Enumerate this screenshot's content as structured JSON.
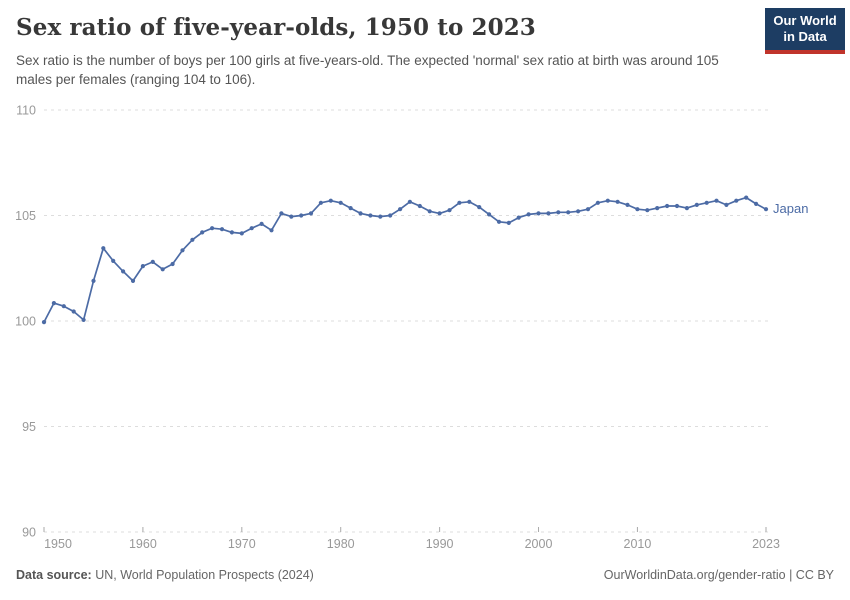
{
  "header": {
    "title": "Sex ratio of five-year-olds, 1950 to 2023",
    "subtitle": "Sex ratio is the number of boys per 100 girls at five-years-old. The expected 'normal' sex ratio at birth was around 105 males per females (ranging 104 to 106).",
    "logo": {
      "line1": "Our World",
      "line2": "in Data"
    }
  },
  "chart_data": {
    "type": "line",
    "title": "Sex ratio of five-year-olds, 1950 to 2023",
    "xlabel": "",
    "ylabel": "",
    "ylim": [
      90,
      110
    ],
    "yticks": [
      90,
      95,
      100,
      105,
      110
    ],
    "xticks": [
      1950,
      1960,
      1970,
      1980,
      1990,
      2000,
      2010,
      2023
    ],
    "grid": "horizontal-dashed",
    "legend_position": "end-of-line-label",
    "x_start": 1950,
    "x_end": 2023,
    "series": [
      {
        "name": "Japan",
        "color": "#4c6ba5",
        "x": [
          1950,
          1951,
          1952,
          1953,
          1954,
          1955,
          1956,
          1957,
          1958,
          1959,
          1960,
          1961,
          1962,
          1963,
          1964,
          1965,
          1966,
          1967,
          1968,
          1969,
          1970,
          1971,
          1972,
          1973,
          1974,
          1975,
          1976,
          1977,
          1978,
          1979,
          1980,
          1981,
          1982,
          1983,
          1984,
          1985,
          1986,
          1987,
          1988,
          1989,
          1990,
          1991,
          1992,
          1993,
          1994,
          1995,
          1996,
          1997,
          1998,
          1999,
          2000,
          2001,
          2002,
          2003,
          2004,
          2005,
          2006,
          2007,
          2008,
          2009,
          2010,
          2011,
          2012,
          2013,
          2014,
          2015,
          2016,
          2017,
          2018,
          2019,
          2020,
          2021,
          2022,
          2023
        ],
        "values": [
          99.95,
          100.85,
          100.7,
          100.45,
          100.05,
          101.9,
          103.45,
          102.85,
          102.35,
          101.9,
          102.6,
          102.8,
          102.45,
          102.7,
          103.35,
          103.85,
          104.2,
          104.4,
          104.35,
          104.2,
          104.15,
          104.4,
          104.6,
          104.3,
          105.1,
          104.95,
          105.0,
          105.1,
          105.6,
          105.7,
          105.6,
          105.35,
          105.1,
          105.0,
          104.95,
          105.0,
          105.3,
          105.65,
          105.45,
          105.2,
          105.1,
          105.25,
          105.6,
          105.65,
          105.4,
          105.05,
          104.7,
          104.65,
          104.9,
          105.05,
          105.1,
          105.1,
          105.15,
          105.15,
          105.2,
          105.3,
          105.6,
          105.7,
          105.65,
          105.5,
          105.3,
          105.25,
          105.35,
          105.45,
          105.45,
          105.35,
          105.5,
          105.6,
          105.7,
          105.5,
          105.7,
          105.85,
          105.55,
          105.3
        ]
      }
    ]
  },
  "footer": {
    "source_label": "Data source:",
    "source_text": " UN, World Population Prospects (2024)",
    "link_text": "OurWorldinData.org/gender-ratio | CC BY"
  },
  "colors": {
    "line": "#4c6ba5",
    "grid": "#dddddd",
    "tick": "#aaaaaa",
    "axis_label": "#999999",
    "logo_bg": "#1d3d63",
    "logo_stripe": "#c0342b"
  }
}
